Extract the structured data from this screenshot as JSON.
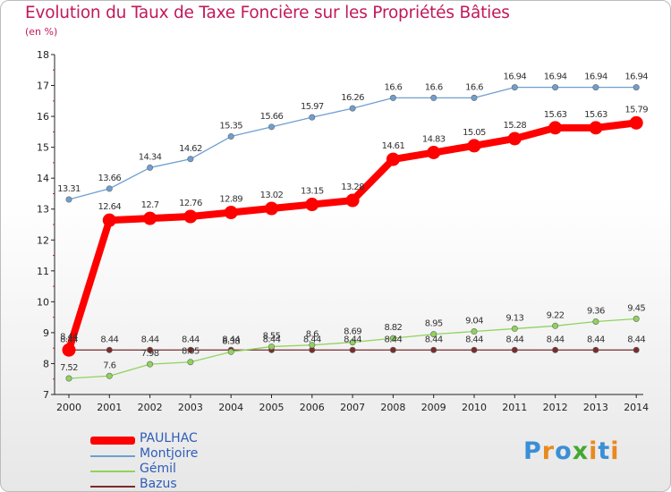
{
  "title": "Evolution du Taux de Taxe Foncière sur les Propriétés Bâties",
  "subtitle": "(en %)",
  "logo": {
    "text": "Proxiti",
    "colors": [
      "#3a8fd6",
      "#e8891f",
      "#3a8fd6",
      "#44a834",
      "#e8891f",
      "#3a8fd6",
      "#e8891f"
    ]
  },
  "chart_data": {
    "type": "line",
    "title": "Evolution du Taux de Taxe Foncière sur les Propriétés Bâties",
    "ylabel": "(en %)",
    "xlabel": "",
    "ylim": [
      7,
      18
    ],
    "yticks": [
      "7",
      "8",
      "9",
      "10",
      "11",
      "12",
      "13",
      "14",
      "15",
      "16",
      "17",
      "18"
    ],
    "categories": [
      "2000",
      "2001",
      "2002",
      "2003",
      "2004",
      "2005",
      "2006",
      "2007",
      "2008",
      "2009",
      "2010",
      "2011",
      "2012",
      "2013",
      "2014"
    ],
    "legend_position": "bottom-left",
    "series": [
      {
        "name": "Bazus",
        "color": "#7a2b2b",
        "style": "thin",
        "values": [
          8.44,
          8.44,
          8.44,
          8.44,
          8.44,
          8.44,
          8.44,
          8.44,
          8.44,
          8.44,
          8.44,
          8.44,
          8.44,
          8.44,
          8.44
        ],
        "labels": [
          "8.44",
          "8.44",
          "8.44",
          "8.44",
          "8.44",
          "8.44",
          "8.44",
          "8.44",
          "8.44",
          "8.44",
          "8.44",
          "8.44",
          "8.44",
          "8.44",
          "8.44"
        ]
      },
      {
        "name": "Gémil",
        "color": "#8fd35d",
        "style": "thin",
        "values": [
          7.52,
          7.6,
          7.98,
          8.05,
          8.38,
          8.55,
          8.6,
          8.69,
          8.82,
          8.95,
          9.04,
          9.13,
          9.22,
          9.36,
          9.45
        ],
        "labels": [
          "7.52",
          "7.6",
          "7.98",
          "8.05",
          "8.38",
          "8.55",
          "8.6",
          "8.69",
          "8.82",
          "8.95",
          "9.04",
          "9.13",
          "9.22",
          "9.36",
          "9.45"
        ]
      },
      {
        "name": "Montjoire",
        "color": "#6f9fd0",
        "style": "thin",
        "values": [
          13.31,
          13.66,
          14.34,
          14.62,
          15.35,
          15.66,
          15.97,
          16.26,
          16.6,
          16.6,
          16.6,
          16.94,
          16.94,
          16.94,
          16.94
        ],
        "labels": [
          "13.31",
          "13.66",
          "14.34",
          "14.62",
          "15.35",
          "15.66",
          "15.97",
          "16.26",
          "16.6",
          "16.6",
          "16.6",
          "16.94",
          "16.94",
          "16.94",
          "16.94"
        ]
      },
      {
        "name": "PAULHAC",
        "color": "#ff0000",
        "style": "thick",
        "values": [
          8.44,
          12.64,
          12.7,
          12.76,
          12.89,
          13.02,
          13.15,
          13.28,
          14.61,
          14.83,
          15.05,
          15.28,
          15.63,
          15.63,
          15.79
        ],
        "labels": [
          "8.44",
          "12.64",
          "12.7",
          "12.76",
          "12.89",
          "13.02",
          "13.15",
          "13.28",
          "14.61",
          "14.83",
          "15.05",
          "15.28",
          "15.63",
          "15.63",
          "15.79"
        ]
      }
    ]
  }
}
